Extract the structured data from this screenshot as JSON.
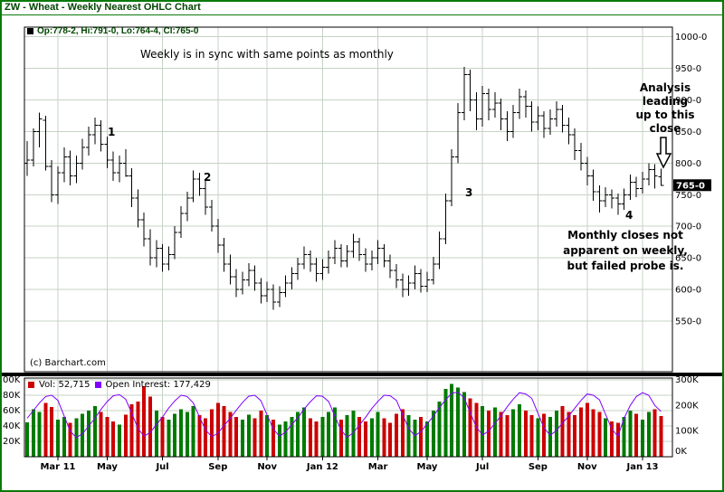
{
  "colors": {
    "border_green": "#0a7a0a",
    "title_green": "#004400",
    "grid": "#c5d3c5",
    "bar_black": "#000000",
    "vol_up": "#007a00",
    "vol_down": "#cc0000",
    "open_interest": "#8000ff",
    "last_price_bg": "#000000",
    "last_price_fg": "#ffffff"
  },
  "chart_data": {
    "type": "ohlc",
    "title": "ZW - Wheat - Weekly Nearest OHLC Chart",
    "subtitle_quote": "Op:778-2, Hi:791-0, Lo:764-4, Cl:765-0",
    "copyright": "(c) Barchart.com",
    "legend": {
      "volume": "Vol: 52,715",
      "open_interest": "Open Interest: 177,429"
    },
    "annotations": {
      "top_note": "Weekly is in sync with same points as monthly",
      "point1": "1",
      "point2": "2",
      "point3": "3",
      "point4": "4",
      "analysis_note": "Analysis\nleading\nup to this\nclose",
      "probe_note": "Monthly closes not\napparent on weekly,\nbut failed probe is."
    },
    "x_axis": {
      "tick_labels": [
        "Mar 11",
        "May",
        "Jul",
        "Sep",
        "Nov",
        "Jan 12",
        "Mar",
        "May",
        "Jul",
        "Sep",
        "Nov",
        "Jan 13"
      ],
      "tick_indices": [
        6,
        14,
        23,
        32,
        40,
        49,
        58,
        66,
        75,
        84,
        92,
        101
      ]
    },
    "price_axis": {
      "min": 470,
      "max": 1015,
      "tick_values": [
        1000,
        950,
        900,
        850,
        800,
        750,
        700,
        650,
        600,
        550
      ],
      "tick_labels": [
        "1000-0",
        "950-0",
        "900-0",
        "850-0",
        "800-0",
        "750-0",
        "700-0",
        "650-0",
        "600-0",
        "550-0"
      ],
      "last_price": 765,
      "last_price_label": "765-0"
    },
    "volume_axis": {
      "left_tick_values": [
        100,
        80,
        60,
        40,
        20
      ],
      "left_tick_labels": [
        "00K",
        "80K",
        "60K",
        "40K",
        "20K"
      ],
      "right_tick_values": [
        300,
        200,
        100,
        0
      ],
      "right_tick_labels": [
        "300K",
        "200K",
        "100K",
        "0K"
      ]
    },
    "series": {
      "ohlc_bars": [
        [
          800,
          835,
          780,
          805
        ],
        [
          805,
          855,
          795,
          850
        ],
        [
          850,
          880,
          825,
          870
        ],
        [
          868,
          875,
          788,
          795
        ],
        [
          795,
          805,
          738,
          750
        ],
        [
          750,
          795,
          735,
          785
        ],
        [
          785,
          825,
          770,
          810
        ],
        [
          810,
          820,
          765,
          780
        ],
        [
          780,
          812,
          768,
          800
        ],
        [
          800,
          838,
          790,
          825
        ],
        [
          825,
          858,
          812,
          845
        ],
        [
          845,
          872,
          830,
          860
        ],
        [
          860,
          868,
          818,
          830
        ],
        [
          830,
          842,
          792,
          805
        ],
        [
          805,
          818,
          772,
          785
        ],
        [
          785,
          812,
          770,
          800
        ],
        [
          800,
          822,
          778,
          780
        ],
        [
          780,
          792,
          730,
          745
        ],
        [
          745,
          758,
          698,
          710
        ],
        [
          710,
          722,
          668,
          680
        ],
        [
          680,
          695,
          638,
          650
        ],
        [
          650,
          678,
          635,
          665
        ],
        [
          665,
          672,
          628,
          640
        ],
        [
          640,
          668,
          630,
          655
        ],
        [
          655,
          700,
          648,
          690
        ],
        [
          690,
          732,
          682,
          720
        ],
        [
          720,
          755,
          708,
          745
        ],
        [
          745,
          788,
          738,
          775
        ],
        [
          775,
          785,
          748,
          760
        ],
        [
          760,
          772,
          718,
          730
        ],
        [
          730,
          742,
          692,
          700
        ],
        [
          700,
          712,
          658,
          670
        ],
        [
          670,
          682,
          628,
          640
        ],
        [
          640,
          655,
          608,
          620
        ],
        [
          620,
          632,
          588,
          600
        ],
        [
          600,
          628,
          592,
          615
        ],
        [
          615,
          642,
          605,
          630
        ],
        [
          630,
          638,
          598,
          610
        ],
        [
          610,
          618,
          578,
          590
        ],
        [
          590,
          612,
          580,
          600
        ],
        [
          600,
          608,
          568,
          580
        ],
        [
          580,
          605,
          572,
          595
        ],
        [
          595,
          622,
          588,
          610
        ],
        [
          610,
          635,
          600,
          625
        ],
        [
          625,
          650,
          615,
          640
        ],
        [
          640,
          668,
          632,
          655
        ],
        [
          655,
          662,
          628,
          640
        ],
        [
          640,
          650,
          612,
          625
        ],
        [
          625,
          648,
          615,
          635
        ],
        [
          635,
          662,
          625,
          650
        ],
        [
          650,
          678,
          640,
          665
        ],
        [
          665,
          672,
          635,
          645
        ],
        [
          645,
          670,
          635,
          660
        ],
        [
          660,
          688,
          650,
          675
        ],
        [
          675,
          682,
          645,
          655
        ],
        [
          655,
          665,
          628,
          640
        ],
        [
          640,
          662,
          630,
          650
        ],
        [
          650,
          678,
          640,
          665
        ],
        [
          665,
          672,
          635,
          645
        ],
        [
          645,
          655,
          618,
          630
        ],
        [
          630,
          640,
          602,
          615
        ],
        [
          615,
          625,
          588,
          600
        ],
        [
          600,
          622,
          590,
          610
        ],
        [
          610,
          638,
          600,
          625
        ],
        [
          625,
          632,
          595,
          605
        ],
        [
          605,
          628,
          596,
          615
        ],
        [
          615,
          652,
          608,
          640
        ],
        [
          640,
          692,
          632,
          680
        ],
        [
          680,
          752,
          672,
          740
        ],
        [
          740,
          822,
          732,
          810
        ],
        [
          810,
          895,
          800,
          880
        ],
        [
          880,
          952,
          868,
          940
        ],
        [
          940,
          948,
          882,
          900
        ],
        [
          900,
          912,
          852,
          870
        ],
        [
          870,
          922,
          858,
          910
        ],
        [
          910,
          918,
          868,
          885
        ],
        [
          885,
          912,
          872,
          895
        ],
        [
          895,
          902,
          852,
          870
        ],
        [
          870,
          882,
          835,
          850
        ],
        [
          850,
          892,
          840,
          880
        ],
        [
          880,
          918,
          870,
          905
        ],
        [
          905,
          915,
          872,
          890
        ],
        [
          890,
          898,
          850,
          865
        ],
        [
          865,
          890,
          852,
          875
        ],
        [
          875,
          882,
          840,
          855
        ],
        [
          855,
          885,
          845,
          870
        ],
        [
          870,
          898,
          858,
          885
        ],
        [
          885,
          892,
          848,
          860
        ],
        [
          860,
          872,
          830,
          845
        ],
        [
          845,
          855,
          805,
          820
        ],
        [
          820,
          832,
          788,
          800
        ],
        [
          800,
          810,
          765,
          780
        ],
        [
          780,
          790,
          740,
          755
        ],
        [
          755,
          765,
          722,
          740
        ],
        [
          740,
          762,
          730,
          750
        ],
        [
          750,
          758,
          728,
          745
        ],
        [
          745,
          752,
          718,
          735
        ],
        [
          735,
          760,
          726,
          750
        ],
        [
          750,
          782,
          742,
          770
        ],
        [
          770,
          778,
          746,
          760
        ],
        [
          760,
          786,
          752,
          775
        ],
        [
          775,
          800,
          765,
          790
        ],
        [
          790,
          798,
          760,
          780
        ],
        [
          778,
          791,
          764,
          765
        ]
      ],
      "volume_thousands": [
        45,
        62,
        58,
        70,
        65,
        48,
        52,
        44,
        50,
        56,
        60,
        66,
        58,
        52,
        46,
        42,
        55,
        68,
        72,
        92,
        78,
        60,
        52,
        48,
        56,
        62,
        58,
        66,
        54,
        50,
        62,
        70,
        66,
        58,
        52,
        48,
        55,
        50,
        60,
        54,
        48,
        42,
        46,
        52,
        58,
        64,
        50,
        46,
        52,
        58,
        64,
        48,
        54,
        60,
        52,
        46,
        50,
        58,
        50,
        44,
        56,
        62,
        54,
        48,
        52,
        46,
        60,
        72,
        88,
        95,
        90,
        84,
        76,
        70,
        66,
        60,
        64,
        58,
        54,
        62,
        68,
        60,
        54,
        50,
        56,
        52,
        60,
        66,
        58,
        54,
        64,
        70,
        62,
        58,
        50,
        46,
        44,
        52,
        60,
        56,
        48,
        58,
        62,
        53
      ],
      "open_interest_thousands": [
        150,
        180,
        210,
        235,
        240,
        220,
        160,
        100,
        75,
        90,
        120,
        150,
        185,
        215,
        238,
        242,
        225,
        170,
        110,
        80,
        95,
        125,
        155,
        190,
        218,
        240,
        235,
        210,
        155,
        105,
        78,
        92,
        122,
        150,
        182,
        212,
        236,
        240,
        218,
        162,
        108,
        80,
        96,
        126,
        152,
        186,
        214,
        238,
        236,
        215,
        158,
        104,
        76,
        94,
        124,
        154,
        188,
        216,
        240,
        238,
        220,
        165,
        110,
        82,
        98,
        128,
        158,
        192,
        222,
        248,
        252,
        230,
        172,
        115,
        85,
        100,
        130,
        160,
        195,
        225,
        250,
        245,
        228,
        170,
        112,
        84,
        102,
        132,
        158,
        190,
        220,
        245,
        240,
        222,
        165,
        108,
        80,
        150,
        200,
        235,
        250,
        240,
        200,
        177
      ]
    }
  }
}
